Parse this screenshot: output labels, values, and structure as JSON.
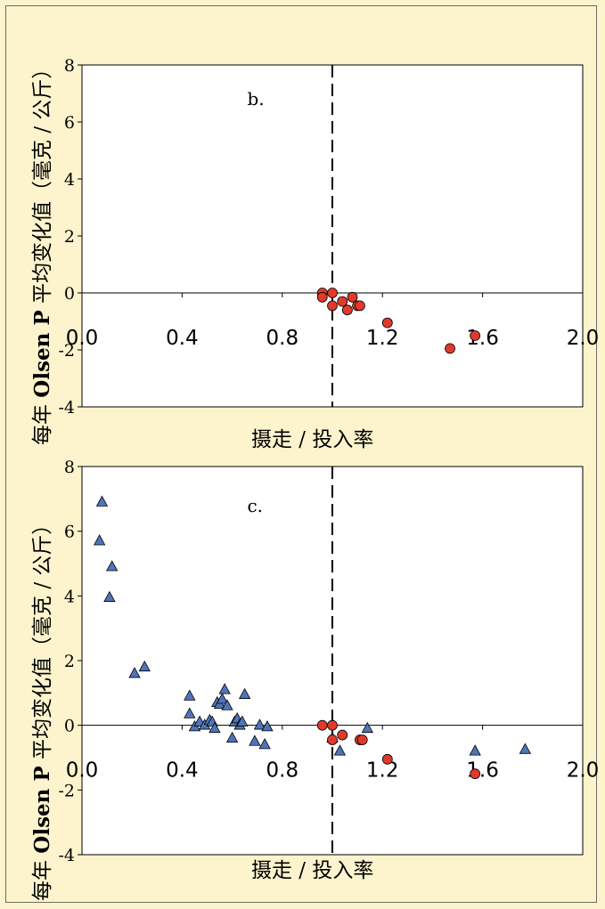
{
  "figure": {
    "background": "#fdf4cd"
  },
  "chart_data": [
    {
      "type": "scatter",
      "panel_label": "b.",
      "ylabel_prefix": "每年",
      "ylabel_bold": "Olsen P",
      "ylabel_suffix": "平均变化值（毫克 / 公斤）",
      "xlabel": "摄走 / 投入率",
      "xlim": [
        0.0,
        2.0
      ],
      "ylim": [
        -4,
        8
      ],
      "xticks": [
        0.0,
        0.4,
        0.8,
        1.2,
        1.6,
        2.0
      ],
      "xtick_labels": [
        "0.0",
        "0.4",
        "0.8",
        "1.2",
        "1.6",
        "2.0"
      ],
      "yticks": [
        -4,
        -2,
        0,
        2,
        4,
        6,
        8
      ],
      "ytick_labels": [
        "-4",
        "-2",
        "0",
        "2",
        "4",
        "6",
        "8"
      ],
      "reference_line_x": 1.0,
      "grid": false,
      "series": [
        {
          "marker": "circle",
          "color": "#e03a2c",
          "x": [
            0.96,
            0.96,
            1.0,
            1.0,
            1.04,
            1.06,
            1.08,
            1.1,
            1.11,
            1.22,
            1.47,
            1.57
          ],
          "y": [
            0.0,
            -0.15,
            0.0,
            -0.45,
            -0.3,
            -0.6,
            -0.15,
            -0.45,
            -0.45,
            -1.05,
            -1.95,
            -1.5
          ]
        }
      ]
    },
    {
      "type": "scatter",
      "panel_label": "c.",
      "ylabel_prefix": "每年",
      "ylabel_bold": "Olsen P",
      "ylabel_suffix": "平均变化值（毫克 / 公斤）",
      "xlabel": "摄走 / 投入率",
      "xlim": [
        0.0,
        2.0
      ],
      "ylim": [
        -4,
        8
      ],
      "xticks": [
        0.0,
        0.4,
        0.8,
        1.2,
        1.6,
        2.0
      ],
      "xtick_labels": [
        "0.0",
        "0.4",
        "0.8",
        "1.2",
        "1.6",
        "2.0"
      ],
      "yticks": [
        -4,
        -2,
        0,
        2,
        4,
        6,
        8
      ],
      "ytick_labels": [
        "-4",
        "-2",
        "0",
        "2",
        "4",
        "6",
        "8"
      ],
      "reference_line_x": 1.0,
      "grid": false,
      "series": [
        {
          "marker": "triangle",
          "color": "#4f74b9",
          "x": [
            0.07,
            0.08,
            0.11,
            0.12,
            0.21,
            0.25,
            0.43,
            0.43,
            0.45,
            0.47,
            0.49,
            0.51,
            0.52,
            0.53,
            0.54,
            0.55,
            0.56,
            0.57,
            0.58,
            0.6,
            0.61,
            0.62,
            0.63,
            0.64,
            0.65,
            0.69,
            0.71,
            0.73,
            0.74,
            1.0,
            1.03,
            1.14,
            1.57,
            1.77
          ],
          "y": [
            5.7,
            6.9,
            3.95,
            4.9,
            1.6,
            1.8,
            0.9,
            0.35,
            -0.05,
            0.1,
            0.0,
            0.15,
            0.1,
            -0.1,
            0.7,
            0.65,
            0.8,
            1.1,
            0.6,
            -0.4,
            0.1,
            0.2,
            0.0,
            0.1,
            0.95,
            -0.5,
            0.0,
            -0.6,
            -0.05,
            -0.4,
            -0.8,
            -0.1,
            -0.8,
            -0.75
          ]
        },
        {
          "marker": "circle",
          "color": "#e03a2c",
          "x": [
            0.96,
            1.0,
            1.0,
            1.04,
            1.11,
            1.12,
            1.22,
            1.57
          ],
          "y": [
            0.0,
            0.0,
            -0.45,
            -0.3,
            -0.45,
            -0.45,
            -1.05,
            -1.5
          ]
        }
      ]
    }
  ]
}
